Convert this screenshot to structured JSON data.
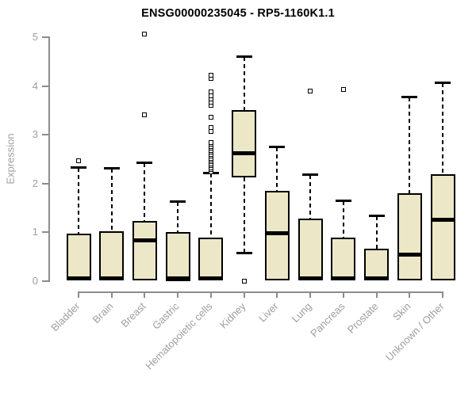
{
  "page": {
    "background": "#ffffff"
  },
  "chart_data": {
    "type": "box",
    "title": "ENSG00000235045 - RP5-1160K1.1",
    "ylabel": "Expression",
    "xlabel": "",
    "ylim": [
      0,
      5
    ],
    "y_ticks": [
      0,
      1,
      2,
      3,
      4,
      5
    ],
    "grid": false,
    "legend": "none",
    "colors": {
      "box_fill": "#ece7c6",
      "box_border": "#000000",
      "median": "#000000",
      "whisker": "#000000",
      "outlier_fill": "#ffffff",
      "axis_line": "#8c8c8c",
      "tick_text": "#9e9e9e",
      "title_text": "#000000"
    },
    "categories": [
      {
        "label": "Bladder",
        "q1": 0,
        "median": 0.03,
        "q3": 0.96,
        "whisker_low": 0,
        "whisker_high": 2.31,
        "outliers": [
          2.46
        ]
      },
      {
        "label": "Brain",
        "q1": 0,
        "median": 0.03,
        "q3": 1.01,
        "whisker_low": 0,
        "whisker_high": 2.3,
        "outliers": []
      },
      {
        "label": "Breast",
        "q1": 0,
        "median": 0.83,
        "q3": 1.23,
        "whisker_low": 0,
        "whisker_high": 2.42,
        "outliers": [
          3.41,
          5.07
        ]
      },
      {
        "label": "Gastric",
        "q1": 0,
        "median": 0.03,
        "q3": 1.0,
        "whisker_low": 0,
        "whisker_high": 1.61,
        "outliers": []
      },
      {
        "label": "Hematopoietic cells",
        "q1": 0,
        "median": 0.02,
        "q3": 0.88,
        "whisker_low": 0,
        "whisker_high": 2.2,
        "outliers": [
          2.24,
          2.28,
          2.32,
          2.36,
          2.4,
          2.44,
          2.48,
          2.52,
          2.56,
          2.6,
          2.64,
          2.68,
          2.72,
          2.76,
          2.8,
          2.84,
          3.07,
          3.15,
          3.36,
          3.6,
          3.67,
          3.73,
          3.8,
          3.87,
          4.15,
          4.22
        ]
      },
      {
        "label": "Kidney",
        "q1": 2.12,
        "median": 2.61,
        "q3": 3.5,
        "whisker_low": 0.58,
        "whisker_high": 4.6,
        "outliers": [
          0
        ]
      },
      {
        "label": "Liver",
        "q1": 0,
        "median": 0.98,
        "q3": 1.85,
        "whisker_low": 0,
        "whisker_high": 2.74,
        "outliers": []
      },
      {
        "label": "Lung",
        "q1": 0,
        "median": 0.03,
        "q3": 1.28,
        "whisker_low": 0,
        "whisker_high": 2.17,
        "outliers": [
          3.9
        ]
      },
      {
        "label": "Pancreas",
        "q1": 0,
        "median": 0.03,
        "q3": 0.88,
        "whisker_low": 0,
        "whisker_high": 1.64,
        "outliers": [
          3.92
        ]
      },
      {
        "label": "Prostate",
        "q1": 0,
        "median": 0.03,
        "q3": 0.66,
        "whisker_low": 0,
        "whisker_high": 1.32,
        "outliers": []
      },
      {
        "label": "Skin",
        "q1": 0,
        "median": 0.53,
        "q3": 1.8,
        "whisker_low": 0,
        "whisker_high": 3.76,
        "outliers": []
      },
      {
        "label": "Unknown / Other",
        "q1": 0,
        "median": 1.25,
        "q3": 2.18,
        "whisker_low": 0,
        "whisker_high": 4.05,
        "outliers": []
      }
    ]
  }
}
